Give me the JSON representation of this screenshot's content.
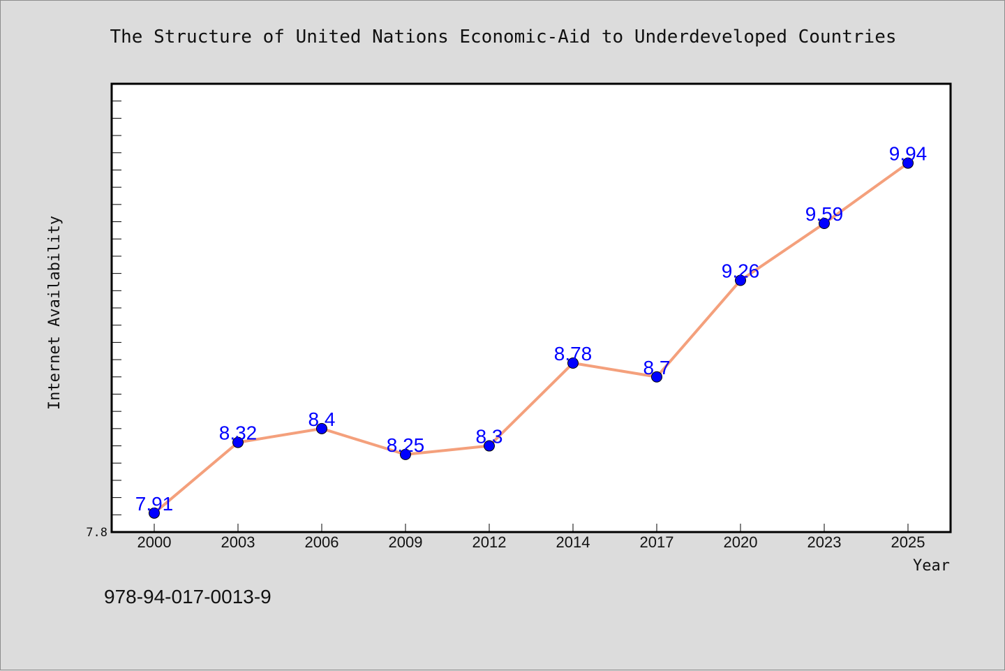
{
  "chart_data": {
    "type": "line",
    "title": "The Structure of United Nations Economic-Aid to Underdeveloped Countries",
    "xlabel": "Year",
    "ylabel": "Internet Availability",
    "categories": [
      "2000",
      "2003",
      "2006",
      "2009",
      "2012",
      "2014",
      "2017",
      "2020",
      "2023",
      "2025"
    ],
    "series": [
      {
        "values": [
          7.91,
          8.32,
          8.4,
          8.25,
          8.3,
          8.78,
          8.7,
          9.26,
          9.59,
          9.94
        ],
        "data_labels": [
          "7.91",
          "8.32",
          "8.4",
          "8.25",
          "8.3",
          "8.78",
          "8.7",
          "9.26",
          "9.59",
          "9.94"
        ],
        "line_color": "#f4a07c",
        "marker_color": "#0000ff"
      }
    ],
    "ylim": [
      7.8,
      10.4
    ],
    "y_tick_labels": [
      "7.8"
    ],
    "grid": false,
    "legend": "none"
  },
  "footer": {
    "identifier": "978-94-017-0013-9"
  },
  "colors": {
    "background": "#dcdcdc",
    "plot_background": "#ffffff",
    "line": "#f4a07c",
    "marker": "#0000ff",
    "data_label": "#0000ff"
  }
}
